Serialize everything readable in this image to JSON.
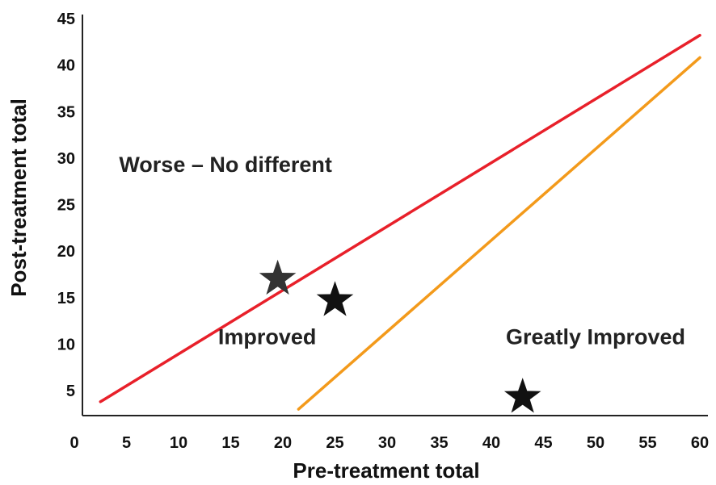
{
  "chart_data": {
    "type": "line",
    "title": "",
    "xlabel": "Pre-treatment total",
    "ylabel": "Post-treatment total",
    "xlim": [
      0,
      60
    ],
    "ylim": [
      2,
      45
    ],
    "x_ticks": [
      "0",
      "5",
      "10",
      "15",
      "20",
      "25",
      "30",
      "35",
      "40",
      "45",
      "50",
      "55",
      "60"
    ],
    "y_ticks": [
      "5",
      "10",
      "15",
      "20",
      "25",
      "30",
      "35",
      "40",
      "45"
    ],
    "grid": false,
    "legend": "none",
    "series": [
      {
        "color": "#e8202a",
        "points": [
          [
            2.5,
            3.8
          ],
          [
            60,
            43.2
          ]
        ]
      },
      {
        "color": "#f39a1b",
        "points": [
          [
            21.5,
            3.0
          ],
          [
            60,
            40.8
          ]
        ]
      }
    ],
    "markers": [
      {
        "x": 19.5,
        "y": 17.0,
        "color": "#333333",
        "symbol": "star"
      },
      {
        "x": 25.0,
        "y": 14.7,
        "color": "#111111",
        "symbol": "star"
      },
      {
        "x": 43.0,
        "y": 4.3,
        "color": "#111111",
        "symbol": "star"
      }
    ],
    "annotations": [
      {
        "text": "Worse – No different",
        "x": 14.5,
        "y": 28.5
      },
      {
        "text": "Improved",
        "x": 18.5,
        "y": 10.0
      },
      {
        "text": "Greatly Improved",
        "x": 50.0,
        "y": 10.0
      }
    ]
  }
}
